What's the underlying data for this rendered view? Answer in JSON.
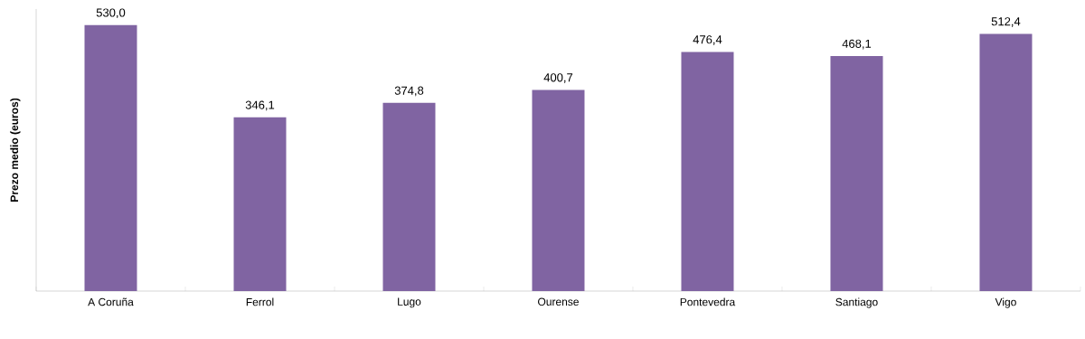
{
  "chart_data": {
    "type": "bar",
    "ylabel": "Prezo medio (euros)",
    "categories": [
      "A Coruña",
      "Ferrol",
      "Lugo",
      "Ourense",
      "Pontevedra",
      "Santiago",
      "Vigo"
    ],
    "values": [
      530.0,
      346.1,
      374.8,
      400.7,
      476.4,
      468.1,
      512.4
    ],
    "value_labels": [
      "530,0",
      "346,1",
      "374,8",
      "400,7",
      "476,4",
      "468,1",
      "512,4"
    ],
    "color": "#8064a2"
  }
}
